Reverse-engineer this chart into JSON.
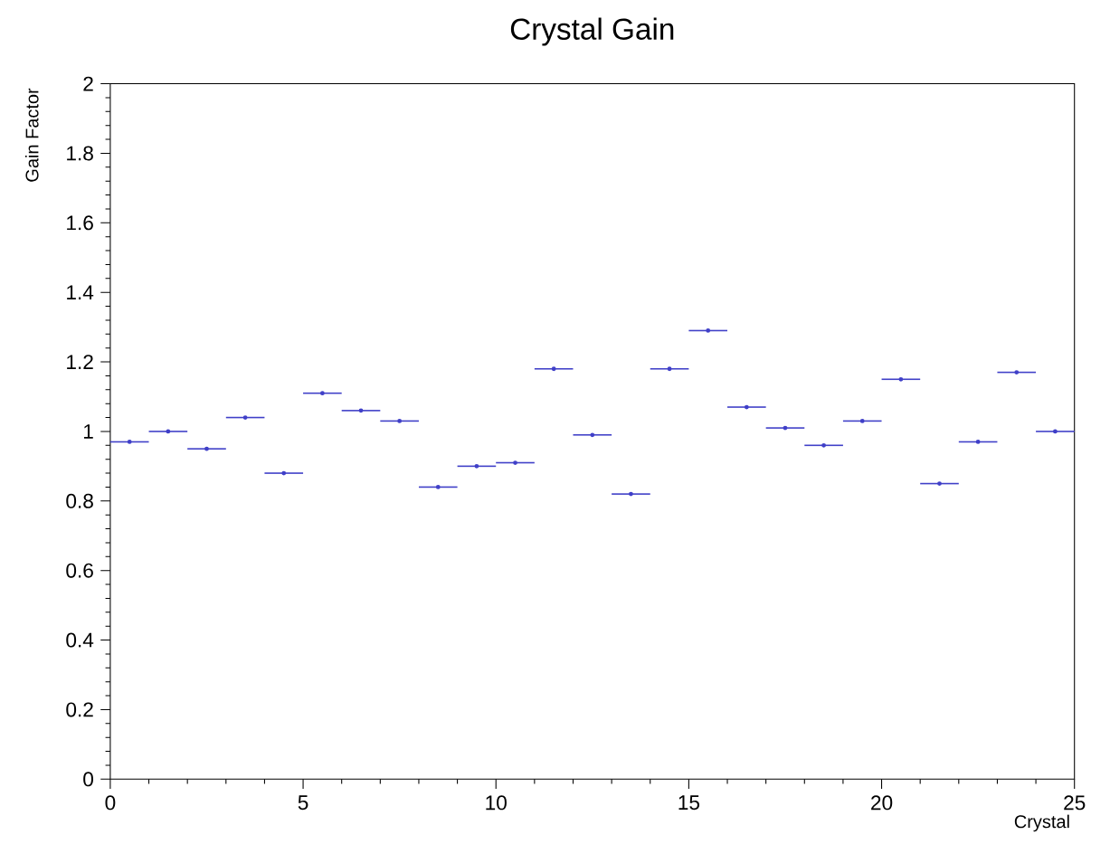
{
  "chart_data": {
    "type": "scatter",
    "title": "Crystal Gain",
    "xlabel": "Crystal",
    "ylabel": "Gain Factor",
    "x": [
      0.5,
      1.5,
      2.5,
      3.5,
      4.5,
      5.5,
      6.5,
      7.5,
      8.5,
      9.5,
      10.5,
      11.5,
      12.5,
      13.5,
      14.5,
      15.5,
      16.5,
      17.5,
      18.5,
      19.5,
      20.5,
      21.5,
      22.5,
      23.5,
      24.5
    ],
    "values": [
      0.97,
      1.0,
      0.95,
      1.04,
      0.88,
      1.11,
      1.06,
      1.03,
      0.84,
      0.9,
      0.91,
      1.18,
      0.99,
      0.82,
      1.18,
      1.29,
      1.07,
      1.01,
      0.96,
      1.03,
      1.15,
      0.85,
      0.97,
      1.17,
      1.0
    ],
    "xerrors": [
      0.5,
      0.5,
      0.5,
      0.5,
      0.5,
      0.5,
      0.5,
      0.5,
      0.5,
      0.5,
      0.5,
      0.5,
      0.5,
      0.5,
      0.5,
      0.5,
      0.5,
      0.5,
      0.5,
      0.5,
      0.5,
      0.5,
      0.5,
      0.5,
      0.5
    ],
    "color": "#4040c8",
    "xlim": [
      0,
      25
    ],
    "ylim": [
      0,
      2
    ],
    "xticks": [
      0,
      5,
      10,
      15,
      20,
      25
    ],
    "yticks": [
      0,
      0.2,
      0.4,
      0.6,
      0.8,
      1,
      1.2,
      1.4,
      1.6,
      1.8,
      2
    ],
    "grid": false
  }
}
